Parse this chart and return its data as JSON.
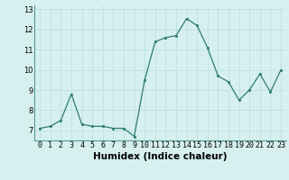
{
  "x": [
    0,
    1,
    2,
    3,
    4,
    5,
    6,
    7,
    8,
    9,
    10,
    11,
    12,
    13,
    14,
    15,
    16,
    17,
    18,
    19,
    20,
    21,
    22,
    23
  ],
  "y": [
    7.1,
    7.2,
    7.5,
    8.8,
    7.3,
    7.2,
    7.2,
    7.1,
    7.1,
    6.7,
    9.5,
    11.4,
    11.6,
    11.7,
    12.55,
    12.2,
    11.1,
    9.7,
    9.4,
    8.5,
    9.0,
    9.8,
    8.9,
    10.0
  ],
  "xlabel": "Humidex (Indice chaleur)",
  "ylim": [
    6.5,
    13.2
  ],
  "xlim": [
    -0.5,
    23.5
  ],
  "yticks": [
    7,
    8,
    9,
    10,
    11,
    12,
    13
  ],
  "xticks": [
    0,
    1,
    2,
    3,
    4,
    5,
    6,
    7,
    8,
    9,
    10,
    11,
    12,
    13,
    14,
    15,
    16,
    17,
    18,
    19,
    20,
    21,
    22,
    23
  ],
  "line_color": "#2e7d6e",
  "marker_color": "#2e7d6e",
  "bg_color": "#d6f0ef",
  "grid_color": "#b8dedd",
  "xlabel_fontsize": 7.5,
  "tick_fontsize": 6.0
}
